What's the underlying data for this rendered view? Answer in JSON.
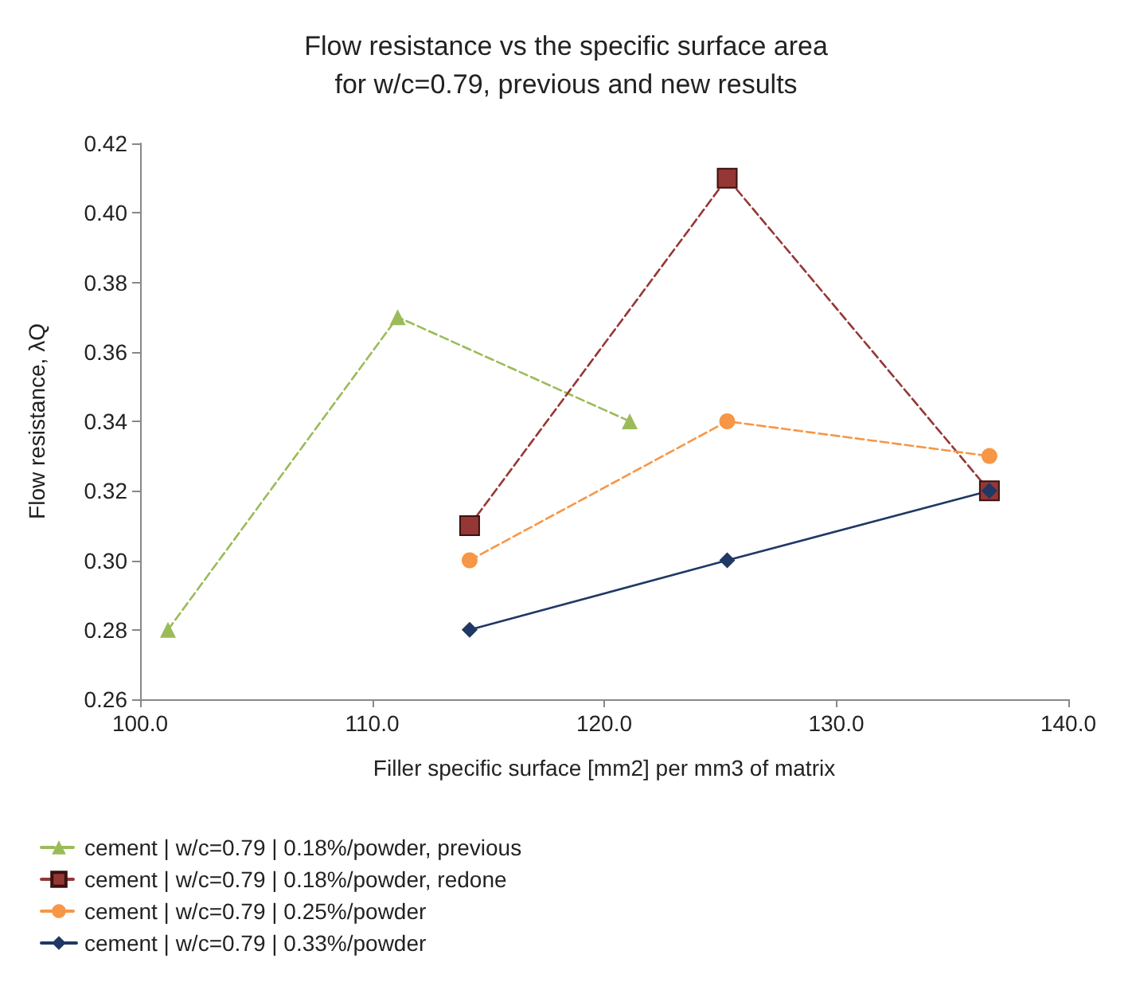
{
  "chart_data": {
    "type": "line",
    "title": "Flow resistance vs the specific surface area\nfor w/c=0.79, previous and new results",
    "xlabel": "Filler specific surface [mm2] per mm3 of matrix",
    "ylabel": "Flow resistance, λQ",
    "series": [
      {
        "name": "cement | w/c=0.79 | 0.18%/powder, previous",
        "color": "#9bbb59",
        "marker": "triangle",
        "line_style": "dashed",
        "x": [
          101.2,
          111.1,
          121.1
        ],
        "values": [
          0.28,
          0.37,
          0.34
        ]
      },
      {
        "name": "cement | w/c=0.79 | 0.18%/powder, redone",
        "color": "#953735",
        "marker": "square",
        "line_style": "dashed",
        "x": [
          114.2,
          125.3,
          136.6
        ],
        "values": [
          0.31,
          0.41,
          0.32
        ]
      },
      {
        "name": "cement | w/c=0.79 | 0.25%/powder",
        "color": "#f79646",
        "marker": "circle",
        "line_style": "dashed",
        "x": [
          114.2,
          125.3,
          136.6
        ],
        "values": [
          0.3,
          0.34,
          0.33
        ]
      },
      {
        "name": "cement | w/c=0.79 | 0.33%/powder",
        "color": "#1f3864",
        "marker": "diamond",
        "line_style": "solid",
        "x": [
          114.2,
          125.3,
          136.6
        ],
        "values": [
          0.28,
          0.3,
          0.32
        ]
      }
    ],
    "xlim": [
      100,
      140
    ],
    "xticks": [
      {
        "value": 100,
        "label": "100.0"
      },
      {
        "value": 110,
        "label": "110.0"
      },
      {
        "value": 120,
        "label": "120.0"
      },
      {
        "value": 130,
        "label": "130.0"
      },
      {
        "value": 140,
        "label": "140.0"
      }
    ],
    "ylim": [
      0.26,
      0.42
    ],
    "yticks": [
      {
        "value": 0.26,
        "label": "0.26"
      },
      {
        "value": 0.28,
        "label": "0.28"
      },
      {
        "value": 0.3,
        "label": "0.30"
      },
      {
        "value": 0.32,
        "label": "0.32"
      },
      {
        "value": 0.34,
        "label": "0.34"
      },
      {
        "value": 0.36,
        "label": "0.36"
      },
      {
        "value": 0.38,
        "label": "0.38"
      },
      {
        "value": 0.4,
        "label": "0.40"
      },
      {
        "value": 0.42,
        "label": "0.42"
      }
    ],
    "grid": false,
    "legend": "bottom"
  }
}
